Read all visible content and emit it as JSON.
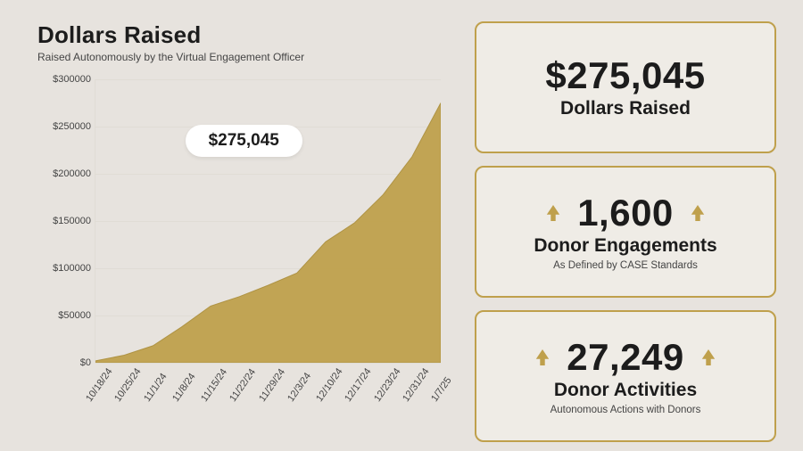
{
  "colors": {
    "bg": "#e7e3de",
    "accent": "#bfa04c",
    "accent_dark": "#af9344",
    "text": "#1c1c1c",
    "muted": "#444444",
    "grid": "#e0dcd5",
    "card_bg": "#efece6",
    "card_border": "#bfa04c",
    "badge_bg": "#ffffff"
  },
  "chart": {
    "title": "Dollars Raised",
    "subtitle": "Raised Autonomously by the Virtual Engagement Officer",
    "type": "area",
    "badge_text": "$275,045",
    "badge_fontsize": 19,
    "badge_left_pct": 26,
    "badge_top_pct": 16,
    "ylim": [
      0,
      300000
    ],
    "ytick_step": 50000,
    "yticks": [
      0,
      50000,
      100000,
      150000,
      200000,
      250000,
      300000
    ],
    "ytick_prefix": "$",
    "xlabels": [
      "10/18/24",
      "10/25/24",
      "11/1/24",
      "11/8/24",
      "11/15/24",
      "11/22/24",
      "11/29/24",
      "12/3/24",
      "12/10/24",
      "12/17/24",
      "12/23/24",
      "12/31/24",
      "1/7/25"
    ],
    "values": [
      2000,
      8000,
      18000,
      38000,
      60000,
      70000,
      82000,
      95000,
      128000,
      148000,
      178000,
      218000,
      275045
    ],
    "fill_color": "#bfa04c",
    "fill_opacity": 0.95,
    "line_color": "#af9344",
    "line_width": 1,
    "grid_color": "#e0dcd5",
    "xlabel_rotation_deg": -55,
    "xlabel_fontsize": 11,
    "ytick_fontsize": 11,
    "title_fontsize": 26,
    "subtitle_fontsize": 12
  },
  "cards": {
    "raised": {
      "value": "$275,045",
      "label": "Dollars Raised",
      "show_arrows": false,
      "value_fontsize": 42
    },
    "engagements": {
      "value": "1,600",
      "label": "Donor Engagements",
      "note": "As Defined by CASE Standards",
      "show_arrows": true,
      "arrow_color": "#bfa04c",
      "value_fontsize": 42
    },
    "activities": {
      "value": "27,249",
      "label": "Donor Activities",
      "note": "Autonomous Actions with Donors",
      "show_arrows": true,
      "arrow_color": "#bfa04c",
      "value_fontsize": 42
    }
  }
}
